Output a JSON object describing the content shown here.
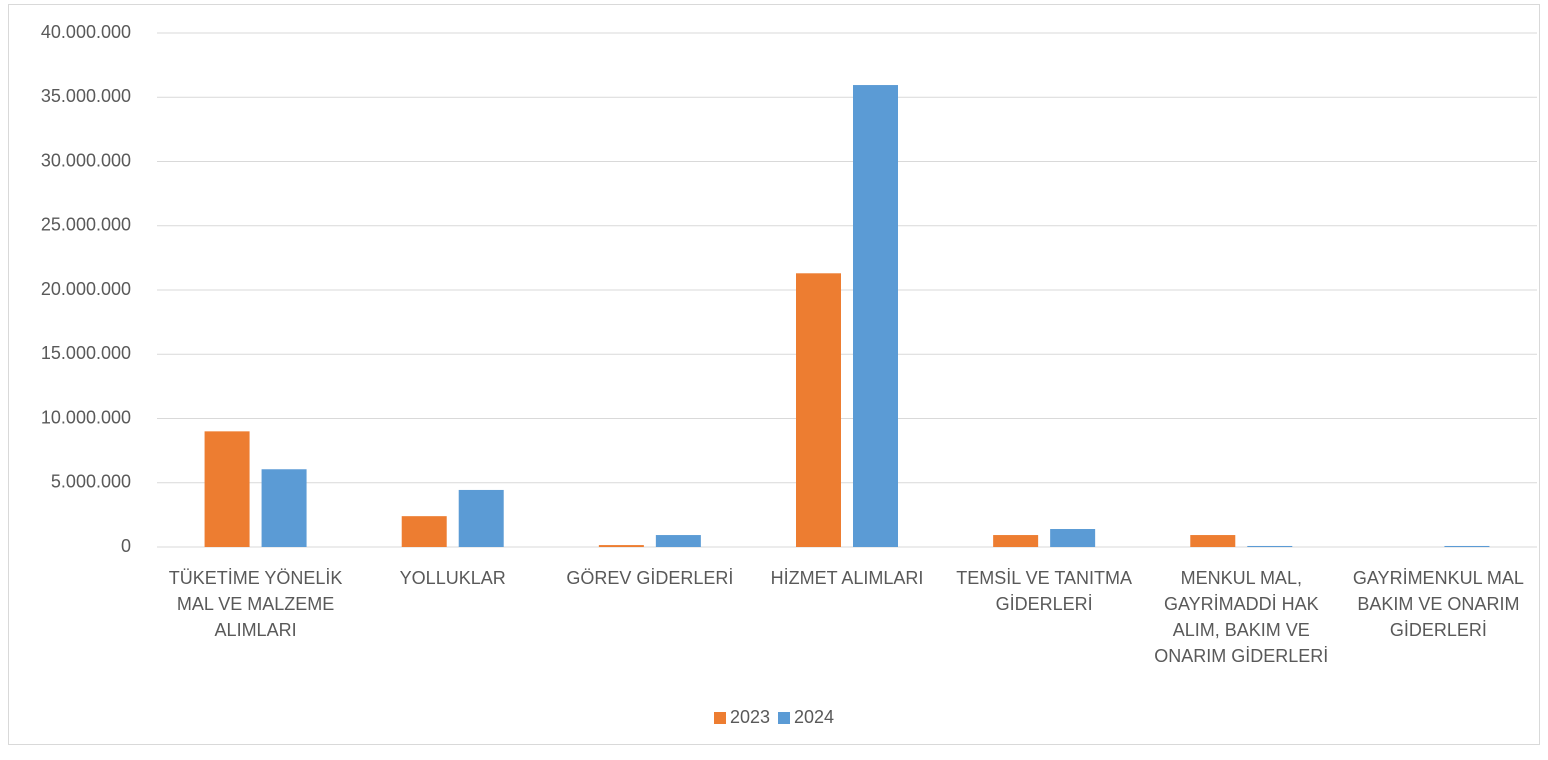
{
  "chart_data": {
    "type": "bar",
    "categories": [
      "TÜKETİME YÖNELİK MAL VE MALZEME ALIMLARI",
      "YOLLUKLAR",
      "GÖREV GİDERLERİ",
      "HİZMET ALIMLARI",
      "TEMSİL VE TANITMA GİDERLERİ",
      "MENKUL MAL, GAYRİMADDİ HAK ALIM, BAKIM VE ONARIM GİDERLERİ",
      "GAYRİMENKUL MAL BAKIM VE ONARIM GİDERLERİ"
    ],
    "series": [
      {
        "name": "2023",
        "color": "#ed7d31",
        "values": [
          9000000,
          2400000,
          150000,
          21300000,
          930000,
          930000,
          0
        ]
      },
      {
        "name": "2024",
        "color": "#5b9bd5",
        "values": [
          6050000,
          4440000,
          930000,
          35950000,
          1400000,
          80000,
          80000
        ]
      }
    ],
    "ylim": [
      0,
      40000000
    ],
    "yticks": [
      0,
      {
        "value": 5000000,
        "label": "5.000.000"
      },
      {
        "value": 10000000,
        "label": "10.000.000"
      },
      {
        "value": 15000000,
        "label": "15.000.000"
      },
      {
        "value": 20000000,
        "label": "20.000.000"
      },
      {
        "value": 25000000,
        "label": "25.000.000"
      },
      {
        "value": 30000000,
        "label": "30.000.000"
      },
      {
        "value": 35000000,
        "label": "35.000.000"
      },
      {
        "value": 40000000,
        "label": "40.000.000"
      }
    ],
    "grid": true,
    "legend": "bottom"
  }
}
